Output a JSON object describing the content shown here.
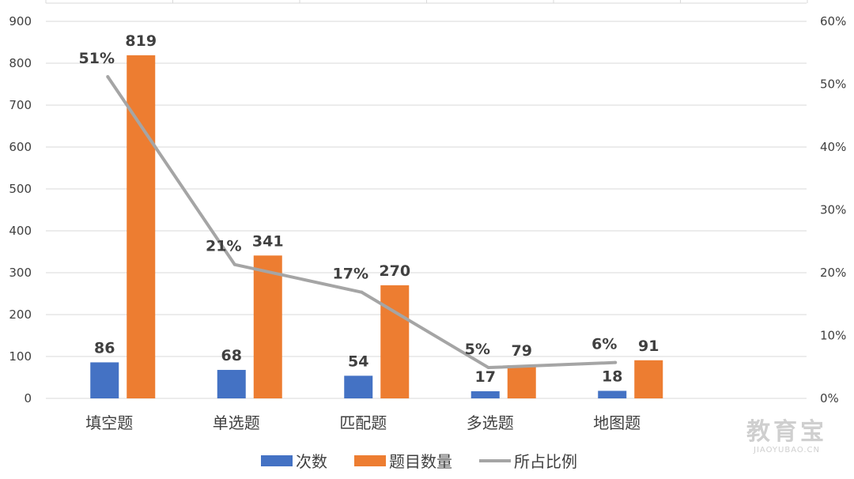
{
  "chart_data": {
    "type": "bar",
    "categories": [
      "填空题",
      "单选题",
      "匹配题",
      "多选题",
      "地图题"
    ],
    "series": [
      {
        "name": "次数",
        "kind": "bar",
        "axis": "left",
        "color": "#4472c4",
        "values": [
          86,
          68,
          54,
          17,
          18
        ],
        "labels": [
          "86",
          "68",
          "54",
          "17",
          "18"
        ]
      },
      {
        "name": "题目数量",
        "kind": "bar",
        "axis": "left",
        "color": "#ed7d31",
        "values": [
          819,
          341,
          270,
          79,
          91
        ],
        "labels": [
          "819",
          "341",
          "270",
          "79",
          "91"
        ]
      },
      {
        "name": "所占比例",
        "kind": "line",
        "axis": "right",
        "color": "#a5a5a5",
        "values": [
          51.2,
          21.3,
          16.9,
          4.9,
          5.7
        ],
        "labels": [
          "51%",
          "21%",
          "17%",
          "5%",
          "6%"
        ]
      }
    ],
    "y_left": {
      "min": 0,
      "max": 900,
      "ticks": [
        "0",
        "100",
        "200",
        "300",
        "400",
        "500",
        "600",
        "700",
        "800",
        "900"
      ]
    },
    "y_right": {
      "min": 0,
      "max": 60,
      "ticks": [
        "0%",
        "10%",
        "20%",
        "30%",
        "40%",
        "50%",
        "60%"
      ]
    },
    "grid": true,
    "legend_position": "bottom"
  },
  "watermark": {
    "main": "教育宝",
    "sub": "JIAOYUBAO.CN"
  }
}
